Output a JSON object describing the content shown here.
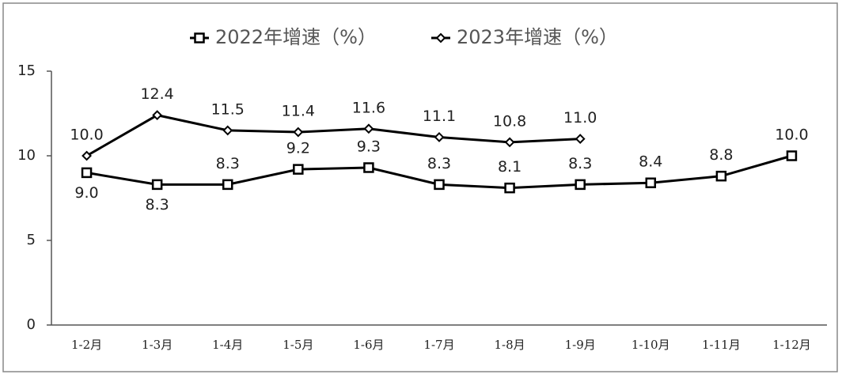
{
  "chart_data": {
    "type": "line",
    "categories": [
      "1-2月",
      "1-3月",
      "1-4月",
      "1-5月",
      "1-6月",
      "1-7月",
      "1-8月",
      "1-9月",
      "1-10月",
      "1-11月",
      "1-12月"
    ],
    "series": [
      {
        "name": "2022年增速（%）",
        "color": "#000000",
        "marker": "square",
        "values": [
          9.0,
          8.3,
          8.3,
          9.2,
          9.3,
          8.3,
          8.1,
          8.3,
          8.4,
          8.8,
          10.0
        ],
        "value_labels": [
          "9.0",
          "8.3",
          "8.3",
          "9.2",
          "9.3",
          "8.3",
          "8.1",
          "8.3",
          "8.4",
          "8.8",
          "10.0"
        ]
      },
      {
        "name": "2023年增速（%）",
        "color": "#000000",
        "marker": "diamond",
        "values": [
          10.0,
          12.4,
          11.5,
          11.4,
          11.6,
          11.1,
          10.8,
          11.0,
          null,
          null,
          null
        ],
        "value_labels": [
          "10.0",
          "12.4",
          "11.5",
          "11.4",
          "11.6",
          "11.1",
          "10.8",
          "11.0",
          null,
          null,
          null
        ]
      }
    ],
    "ylim": [
      0,
      15
    ],
    "yticks": [
      0,
      5,
      10,
      15
    ],
    "grid": false,
    "legend": "top"
  }
}
